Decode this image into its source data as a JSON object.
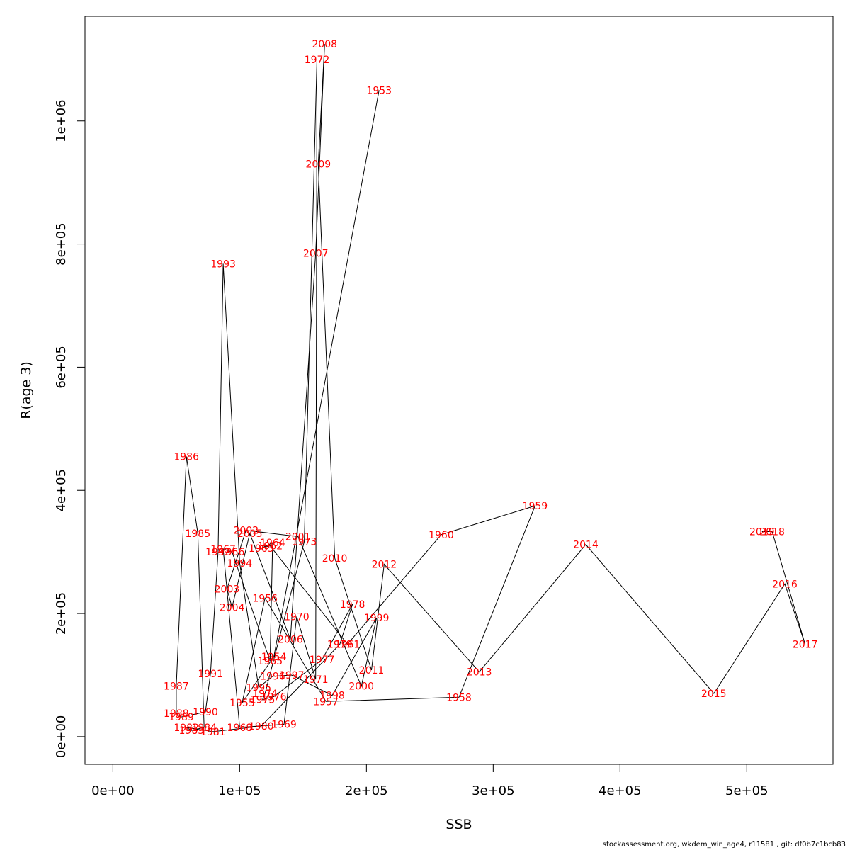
{
  "chart_data": {
    "type": "line",
    "title": "",
    "xlabel": "SSB",
    "ylabel": "R(age 3)",
    "xlim": [
      -22000,
      568000
    ],
    "ylim": [
      -45000,
      1170000
    ],
    "x_ticks": [
      0,
      100000,
      200000,
      300000,
      400000,
      500000
    ],
    "x_tick_labels": [
      "0e+00",
      "1e+05",
      "2e+05",
      "3e+05",
      "4e+05",
      "5e+05"
    ],
    "y_ticks": [
      0,
      200000,
      400000,
      600000,
      800000,
      1000000
    ],
    "y_tick_labels": [
      "0e+00",
      "2e+05",
      "4e+05",
      "6e+05",
      "8e+05",
      "1e+06"
    ],
    "grid": false,
    "legend": "none",
    "line_color": "#000000",
    "label_color": "#ff0000",
    "points": [
      {
        "year": "1953",
        "x": 210000,
        "y": 1050000
      },
      {
        "year": "1954",
        "x": 127000,
        "y": 130000
      },
      {
        "year": "1955",
        "x": 102000,
        "y": 55000
      },
      {
        "year": "1956",
        "x": 120000,
        "y": 225000
      },
      {
        "year": "1957",
        "x": 168000,
        "y": 57000
      },
      {
        "year": "1958",
        "x": 273000,
        "y": 64000
      },
      {
        "year": "1959",
        "x": 333000,
        "y": 375000
      },
      {
        "year": "1960",
        "x": 259000,
        "y": 328000
      },
      {
        "year": "1961",
        "x": 185000,
        "y": 150000
      },
      {
        "year": "1962",
        "x": 124000,
        "y": 310000
      },
      {
        "year": "1963",
        "x": 117000,
        "y": 306000
      },
      {
        "year": "1964",
        "x": 126000,
        "y": 315000
      },
      {
        "year": "1965",
        "x": 124000,
        "y": 123000
      },
      {
        "year": "1966",
        "x": 94000,
        "y": 300000
      },
      {
        "year": "1967",
        "x": 87000,
        "y": 305000
      },
      {
        "year": "1968",
        "x": 100000,
        "y": 15000
      },
      {
        "year": "1969",
        "x": 135000,
        "y": 20000
      },
      {
        "year": "1970",
        "x": 145000,
        "y": 195000
      },
      {
        "year": "1971",
        "x": 160000,
        "y": 93000
      },
      {
        "year": "1972",
        "x": 161000,
        "y": 1100000
      },
      {
        "year": "1973",
        "x": 151000,
        "y": 317000
      },
      {
        "year": "1974",
        "x": 120000,
        "y": 70000
      },
      {
        "year": "1975",
        "x": 118000,
        "y": 60000
      },
      {
        "year": "1976",
        "x": 127000,
        "y": 65000
      },
      {
        "year": "1977",
        "x": 165000,
        "y": 125000
      },
      {
        "year": "1978",
        "x": 189000,
        "y": 215000
      },
      {
        "year": "1979",
        "x": 179000,
        "y": 150000
      },
      {
        "year": "1980",
        "x": 117000,
        "y": 17000
      },
      {
        "year": "1981",
        "x": 79000,
        "y": 8000
      },
      {
        "year": "1982",
        "x": 58000,
        "y": 15000
      },
      {
        "year": "1983",
        "x": 62000,
        "y": 10000
      },
      {
        "year": "1984",
        "x": 72000,
        "y": 15000
      },
      {
        "year": "1985",
        "x": 67000,
        "y": 330000
      },
      {
        "year": "1986",
        "x": 58000,
        "y": 455000
      },
      {
        "year": "1987",
        "x": 50000,
        "y": 82000
      },
      {
        "year": "1988",
        "x": 50000,
        "y": 38000
      },
      {
        "year": "1989",
        "x": 54000,
        "y": 32000
      },
      {
        "year": "1990",
        "x": 73000,
        "y": 40000
      },
      {
        "year": "1991",
        "x": 77000,
        "y": 102000
      },
      {
        "year": "1992",
        "x": 83000,
        "y": 300000
      },
      {
        "year": "1993",
        "x": 87000,
        "y": 768000
      },
      {
        "year": "1994",
        "x": 100000,
        "y": 282000
      },
      {
        "year": "1995",
        "x": 115000,
        "y": 80000
      },
      {
        "year": "1996",
        "x": 126000,
        "y": 98000
      },
      {
        "year": "1997",
        "x": 141000,
        "y": 100000
      },
      {
        "year": "1998",
        "x": 173000,
        "y": 67000
      },
      {
        "year": "1999",
        "x": 208000,
        "y": 193000
      },
      {
        "year": "2000",
        "x": 196000,
        "y": 82000
      },
      {
        "year": "2001",
        "x": 146000,
        "y": 325000
      },
      {
        "year": "2002",
        "x": 105000,
        "y": 335000
      },
      {
        "year": "2003",
        "x": 90000,
        "y": 240000
      },
      {
        "year": "2004",
        "x": 94000,
        "y": 210000
      },
      {
        "year": "2005",
        "x": 108000,
        "y": 330000
      },
      {
        "year": "2006",
        "x": 140000,
        "y": 158000
      },
      {
        "year": "2007",
        "x": 160000,
        "y": 785000
      },
      {
        "year": "2008",
        "x": 167000,
        "y": 1125000
      },
      {
        "year": "2009",
        "x": 162000,
        "y": 930000
      },
      {
        "year": "2010",
        "x": 175000,
        "y": 290000
      },
      {
        "year": "2011",
        "x": 204000,
        "y": 108000
      },
      {
        "year": "2012",
        "x": 214000,
        "y": 280000
      },
      {
        "year": "2013",
        "x": 289000,
        "y": 105000
      },
      {
        "year": "2014",
        "x": 373000,
        "y": 312000
      },
      {
        "year": "2015",
        "x": 474000,
        "y": 70000
      },
      {
        "year": "2016",
        "x": 530000,
        "y": 248000
      },
      {
        "year": "2017",
        "x": 546000,
        "y": 150000
      },
      {
        "year": "2018",
        "x": 520000,
        "y": 333000
      },
      {
        "year": "2019",
        "x": 512000,
        "y": 333000
      }
    ]
  },
  "footer": {
    "text": "stockassessment.org, wkdem_win_age4, r11581 , git: df0b7c1bcb83"
  }
}
